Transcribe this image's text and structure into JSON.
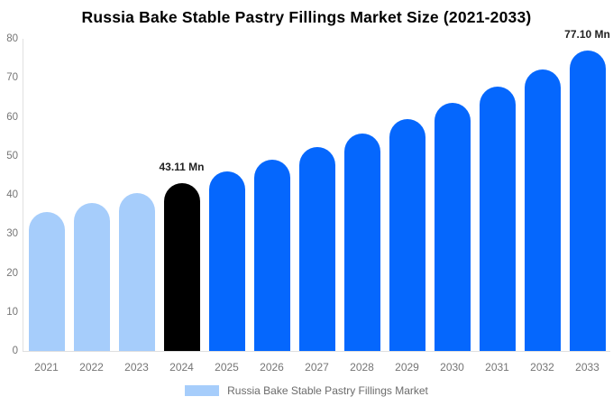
{
  "title": "Russia Bake Stable Pastry Fillings Market Size (2021-2033)",
  "chart_data": {
    "type": "bar",
    "categories": [
      "2021",
      "2022",
      "2023",
      "2024",
      "2025",
      "2026",
      "2027",
      "2028",
      "2029",
      "2030",
      "2031",
      "2032",
      "2033"
    ],
    "values": [
      35.52,
      37.89,
      40.41,
      43.11,
      45.99,
      49.05,
      52.32,
      55.81,
      59.53,
      63.5,
      67.73,
      72.25,
      77.1
    ],
    "bar_colors": [
      "#a6cdfb",
      "#a6cdfb",
      "#a6cdfb",
      "#000000",
      "#0567fd",
      "#0567fd",
      "#0567fd",
      "#0567fd",
      "#0567fd",
      "#0567fd",
      "#0567fd",
      "#0567fd",
      "#0567fd"
    ],
    "annotations": [
      {
        "category": "2024",
        "label": "43.11 Mn"
      },
      {
        "category": "2033",
        "label": "77.10 Mn"
      }
    ],
    "title": "Russia Bake Stable Pastry Fillings Market Size (2021-2033)",
    "xlabel": "",
    "ylabel": "",
    "ylim": [
      0,
      80
    ],
    "y_ticks": [
      0,
      10,
      20,
      30,
      40,
      50,
      60,
      70,
      80
    ],
    "grid": "off",
    "legend_position": "bottom"
  },
  "legend": {
    "label": "Russia Bake Stable Pastry Fillings Market",
    "swatch_color": "#a6cdfb"
  },
  "colors": {
    "series_light": "#a6cdfb",
    "series_primary": "#0567fd",
    "series_highlight": "#000000",
    "axis_text": "#757575",
    "axis_line": "#e0e0e0",
    "annotation_text": "#222222",
    "legend_text": "#6b6b6b",
    "title_text": "#000000"
  }
}
